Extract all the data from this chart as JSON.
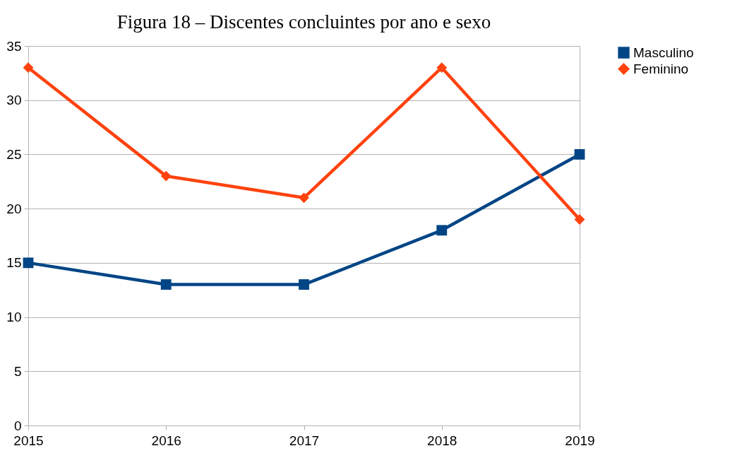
{
  "chart_data": {
    "type": "line",
    "title": "Figura 18 – Discentes concluintes por ano e sexo",
    "categories": [
      "2015",
      "2016",
      "2017",
      "2018",
      "2019"
    ],
    "series": [
      {
        "name": "Masculino",
        "color": "#004586",
        "marker": "square",
        "values": [
          15,
          13,
          13,
          18,
          25
        ]
      },
      {
        "name": "Feminino",
        "color": "#ff420e",
        "marker": "diamond",
        "values": [
          33,
          23,
          21,
          33,
          19
        ]
      }
    ],
    "ylim": [
      0,
      35
    ],
    "yticks": [
      0,
      5,
      10,
      15,
      20,
      25,
      30,
      35
    ],
    "grid": "y",
    "legend": "right",
    "line_style": "solid"
  }
}
